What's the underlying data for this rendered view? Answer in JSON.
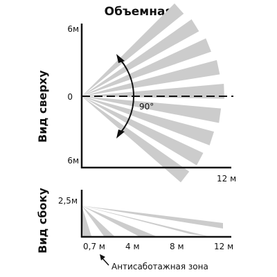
{
  "title": "Объемная",
  "top_view": {
    "label": "Вид сверху",
    "y_top": "6м",
    "y_mid": "0",
    "y_bottom": "6м",
    "x_end": "12 м",
    "angle": "90°"
  },
  "side_view": {
    "label": "Вид сбоку",
    "height": "2,5м",
    "ticks": [
      "0,7 м",
      "4 м",
      "8 м",
      "12 м"
    ],
    "antisabotage": "Антисаботажная зона"
  },
  "colors": {
    "zone": "#cccccc",
    "line": "#111111"
  }
}
